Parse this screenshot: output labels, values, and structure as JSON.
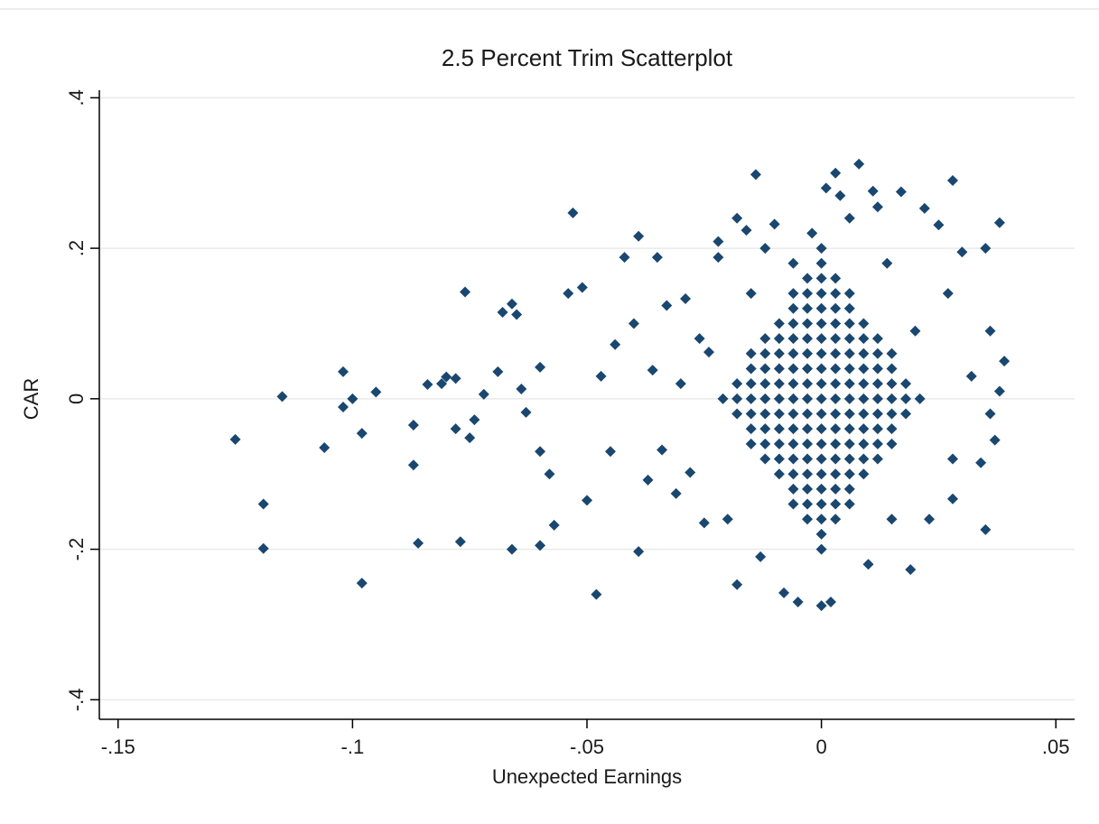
{
  "chart_data": {
    "type": "scatter",
    "title": "2.5 Percent Trim Scatterplot",
    "x_label": "Unexpected Earnings",
    "y_label": "CAR",
    "color": "#1a476f",
    "grid": true,
    "xlim": [
      -0.154,
      0.054
    ],
    "ylim": [
      -0.426,
      0.41
    ],
    "xticks": [
      {
        "value": -0.15,
        "label": "-.15"
      },
      {
        "value": -0.1,
        "label": "-.1"
      },
      {
        "value": -0.05,
        "label": "-.05"
      },
      0,
      {
        "value": 0.05,
        "label": ".05"
      }
    ],
    "yticks": [
      {
        "value": -0.4,
        "label": "-.4"
      },
      {
        "value": -0.2,
        "label": "-.2"
      },
      0,
      {
        "value": 0.2,
        "label": ".2"
      },
      {
        "value": 0.4,
        "label": ".4"
      }
    ],
    "x": [
      0,
      0,
      0,
      0,
      0,
      0,
      0,
      0,
      0,
      0,
      0,
      0,
      0,
      0,
      0,
      0,
      0,
      0,
      0,
      0,
      0,
      -0.003,
      -0.003,
      -0.003,
      -0.003,
      -0.003,
      -0.003,
      -0.003,
      -0.003,
      -0.003,
      -0.003,
      -0.003,
      -0.003,
      -0.003,
      -0.003,
      -0.003,
      -0.003,
      -0.003,
      0.003,
      0.003,
      0.003,
      0.003,
      0.003,
      0.003,
      0.003,
      0.003,
      0.003,
      0.003,
      0.003,
      0.003,
      0.003,
      0.003,
      0.003,
      0.003,
      0.003,
      -0.006,
      -0.006,
      -0.006,
      -0.006,
      -0.006,
      -0.006,
      -0.006,
      -0.006,
      -0.006,
      -0.006,
      -0.006,
      -0.006,
      -0.006,
      -0.006,
      -0.006,
      0.006,
      0.006,
      0.006,
      0.006,
      0.006,
      0.006,
      0.006,
      0.006,
      0.006,
      0.006,
      0.006,
      0.006,
      0.006,
      0.006,
      0.006,
      -0.009,
      -0.009,
      -0.009,
      -0.009,
      -0.009,
      -0.009,
      -0.009,
      -0.009,
      -0.009,
      -0.009,
      -0.009,
      0.009,
      0.009,
      0.009,
      0.009,
      0.009,
      0.009,
      0.009,
      0.009,
      0.009,
      0.009,
      0.009,
      -0.012,
      -0.012,
      -0.012,
      -0.012,
      -0.012,
      -0.012,
      -0.012,
      -0.012,
      -0.012,
      0.012,
      0.012,
      0.012,
      0.012,
      0.012,
      0.012,
      0.012,
      0.012,
      0.012,
      -0.015,
      -0.015,
      -0.015,
      -0.015,
      -0.015,
      -0.015,
      -0.015,
      0.015,
      0.015,
      0.015,
      0.015,
      0.015,
      0.015,
      0.015,
      -0.018,
      -0.018,
      -0.018,
      0.018,
      0.018,
      0.018,
      -0.021,
      0.021,
      -0.125,
      -0.119,
      -0.119,
      -0.115,
      -0.106,
      -0.102,
      -0.102,
      -0.1,
      -0.098,
      -0.098,
      -0.095,
      -0.087,
      -0.087,
      -0.086,
      -0.084,
      -0.081,
      -0.08,
      -0.078,
      -0.078,
      -0.077,
      -0.076,
      -0.075,
      -0.074,
      -0.072,
      -0.069,
      -0.068,
      -0.066,
      -0.065,
      -0.066,
      -0.064,
      -0.063,
      -0.06,
      -0.06,
      -0.06,
      -0.058,
      -0.057,
      -0.054,
      -0.053,
      -0.051,
      -0.05,
      -0.048,
      -0.047,
      -0.045,
      -0.044,
      -0.042,
      -0.04,
      -0.039,
      -0.039,
      -0.037,
      -0.036,
      -0.035,
      -0.034,
      -0.033,
      -0.031,
      -0.03,
      -0.029,
      -0.028,
      -0.026,
      -0.025,
      -0.024,
      -0.022,
      -0.022,
      -0.02,
      -0.018,
      -0.018,
      -0.016,
      -0.015,
      -0.014,
      -0.013,
      -0.012,
      -0.01,
      -0.008,
      -0.006,
      -0.005,
      -0.002,
      0,
      0.001,
      0.002,
      0.003,
      0.004,
      0.006,
      0.008,
      0.01,
      0.011,
      0.012,
      0.014,
      0.015,
      0.017,
      0.019,
      0.02,
      0.022,
      0.023,
      0.025,
      0.027,
      0.028,
      0.028,
      0.028,
      0.03,
      0.032,
      0.034,
      0.035,
      0.035,
      0.036,
      0.037,
      0.038,
      0.038,
      0.039,
      0.036
    ],
    "values": [
      -0.2,
      -0.18,
      -0.16,
      -0.14,
      -0.12,
      -0.1,
      -0.08,
      -0.06,
      -0.04,
      -0.02,
      0,
      0.02,
      0.04,
      0.06,
      0.08,
      0.1,
      0.12,
      0.14,
      0.16,
      0.18,
      0.2,
      -0.16,
      -0.14,
      -0.12,
      -0.1,
      -0.08,
      -0.06,
      -0.04,
      -0.02,
      0,
      0.02,
      0.04,
      0.06,
      0.08,
      0.1,
      0.12,
      0.14,
      0.16,
      -0.16,
      -0.14,
      -0.12,
      -0.1,
      -0.08,
      -0.06,
      -0.04,
      -0.02,
      0,
      0.02,
      0.04,
      0.06,
      0.08,
      0.1,
      0.12,
      0.14,
      0.16,
      -0.14,
      -0.12,
      -0.1,
      -0.08,
      -0.06,
      -0.04,
      -0.02,
      0,
      0.02,
      0.04,
      0.06,
      0.08,
      0.1,
      0.12,
      0.14,
      -0.14,
      -0.12,
      -0.1,
      -0.08,
      -0.06,
      -0.04,
      -0.02,
      0,
      0.02,
      0.04,
      0.06,
      0.08,
      0.1,
      0.12,
      0.14,
      -0.1,
      -0.08,
      -0.06,
      -0.04,
      -0.02,
      0,
      0.02,
      0.04,
      0.06,
      0.08,
      0.1,
      -0.1,
      -0.08,
      -0.06,
      -0.04,
      -0.02,
      0,
      0.02,
      0.04,
      0.06,
      0.08,
      0.1,
      -0.08,
      -0.06,
      -0.04,
      -0.02,
      0,
      0.02,
      0.04,
      0.06,
      0.08,
      -0.08,
      -0.06,
      -0.04,
      -0.02,
      0,
      0.02,
      0.04,
      0.06,
      0.08,
      -0.06,
      -0.04,
      -0.02,
      0,
      0.02,
      0.04,
      0.06,
      -0.06,
      -0.04,
      -0.02,
      0,
      0.02,
      0.04,
      0.06,
      -0.02,
      0,
      0.02,
      -0.02,
      0,
      0.02,
      0,
      0,
      -0.054,
      -0.14,
      -0.199,
      0.003,
      -0.065,
      0.036,
      -0.011,
      0,
      -0.046,
      -0.245,
      0.009,
      -0.035,
      -0.088,
      -0.192,
      0.019,
      0.02,
      0.029,
      0.027,
      -0.04,
      -0.19,
      0.142,
      -0.052,
      -0.028,
      0.006,
      0.036,
      0.115,
      0.126,
      0.112,
      -0.2,
      0.013,
      -0.018,
      -0.195,
      -0.07,
      0.042,
      -0.1,
      -0.168,
      0.14,
      0.247,
      0.148,
      -0.135,
      -0.26,
      0.03,
      -0.07,
      0.072,
      0.188,
      0.1,
      0.216,
      -0.203,
      -0.108,
      0.038,
      0.188,
      -0.068,
      0.124,
      -0.126,
      0.02,
      0.133,
      -0.098,
      0.08,
      -0.165,
      0.062,
      0.209,
      0.188,
      -0.16,
      0.24,
      -0.247,
      0.224,
      0.14,
      0.298,
      -0.21,
      0.2,
      0.232,
      -0.258,
      0.18,
      -0.27,
      0.22,
      -0.275,
      0.28,
      -0.27,
      0.3,
      0.27,
      0.24,
      0.312,
      -0.22,
      0.276,
      0.255,
      0.18,
      -0.16,
      0.275,
      -0.227,
      0.09,
      0.253,
      -0.16,
      0.231,
      0.14,
      0.29,
      -0.08,
      -0.133,
      0.195,
      0.03,
      -0.085,
      0.2,
      -0.174,
      0.09,
      -0.055,
      0.234,
      0.01,
      0.05,
      -0.02
    ]
  }
}
